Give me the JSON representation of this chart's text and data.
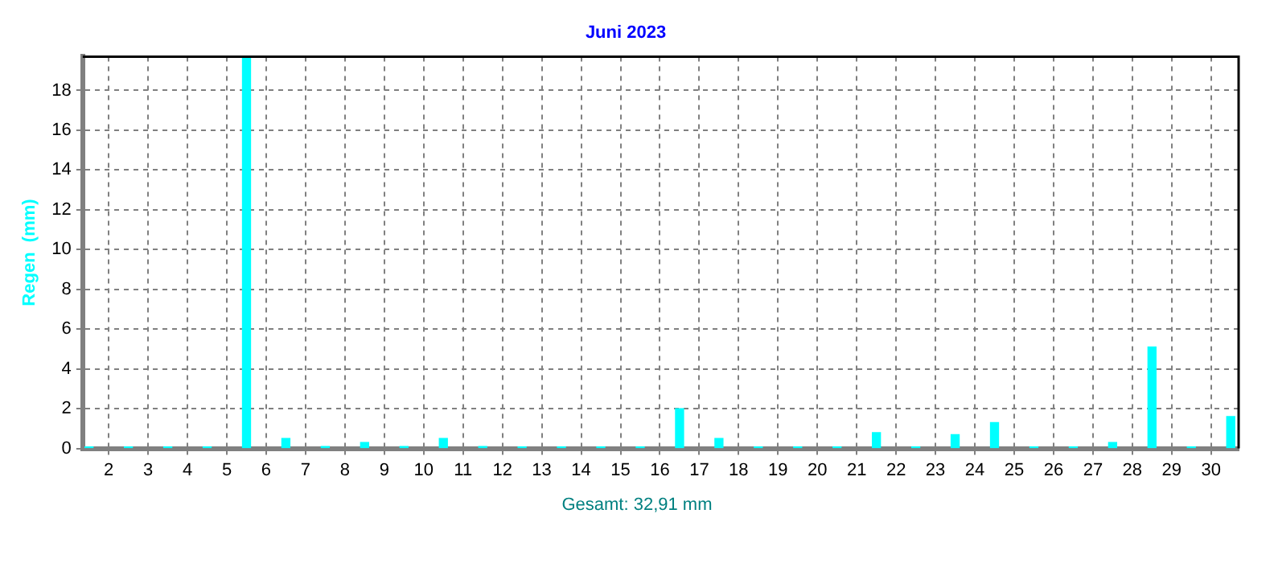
{
  "chart_data": {
    "type": "bar",
    "title": "Juni 2023",
    "ylabel": "Regen  (mm)",
    "annotations": [
      "Gesamt: 32,91 mm"
    ],
    "x": [
      1.5,
      2.5,
      3.5,
      4.5,
      5.5,
      6.5,
      7.5,
      8.5,
      9.5,
      10.5,
      11.5,
      12.5,
      13.5,
      14.5,
      15.5,
      16.5,
      17.5,
      18.5,
      19.5,
      20.5,
      21.5,
      22.5,
      23.5,
      24.5,
      25.5,
      26.5,
      27.5,
      28.5,
      29.5,
      30.5
    ],
    "values": [
      0,
      0,
      0,
      0,
      19.7,
      0.5,
      0.1,
      0.3,
      0.1,
      0.5,
      0.1,
      0,
      0,
      0,
      0,
      2.0,
      0.5,
      0,
      0,
      0,
      0.8,
      0,
      0.7,
      1.3,
      0,
      0,
      0.3,
      5.1,
      0,
      1.6
    ],
    "color": "#00ffff",
    "xlim": [
      1.34,
      30.7
    ],
    "xticks": [
      2,
      3,
      4,
      5,
      6,
      7,
      8,
      9,
      10,
      11,
      12,
      13,
      14,
      15,
      16,
      17,
      18,
      19,
      20,
      21,
      22,
      23,
      24,
      25,
      26,
      27,
      28,
      29,
      30
    ],
    "ylim": [
      0,
      19.7
    ],
    "yticks": [
      0,
      2,
      4,
      6,
      8,
      10,
      12,
      14,
      16,
      18
    ],
    "grid": true,
    "legend": false
  }
}
